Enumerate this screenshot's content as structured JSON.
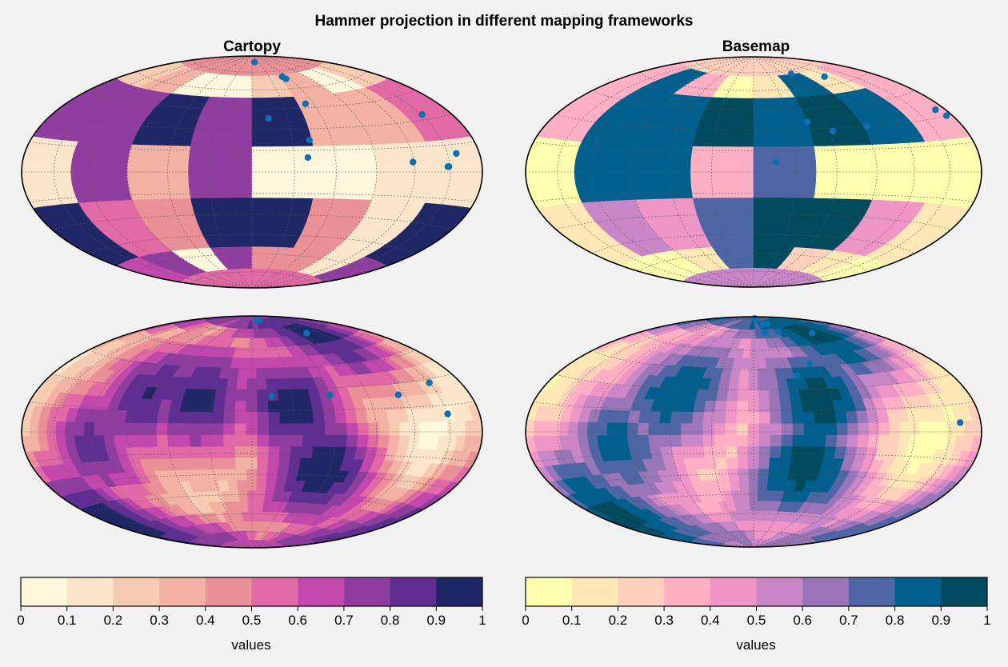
{
  "figure": {
    "title": "Hammer projection in different mapping frameworks",
    "background": "#f2f2f2"
  },
  "panel_titles": [
    "Cartopy",
    "Basemap"
  ],
  "colormaps": {
    "left": [
      "#fff8dc",
      "#fbe6cc",
      "#f6ccb2",
      "#f2b2a4",
      "#ea9097",
      "#e069a6",
      "#c248ad",
      "#8f3d9e",
      "#5e2e91",
      "#202766"
    ],
    "right": [
      "#ffffb0",
      "#ffe8b6",
      "#ffd1bd",
      "#ffb0c5",
      "#f096c6",
      "#c987c8",
      "#9a76b9",
      "#4f66a6",
      "#005f8c",
      "#004a5e"
    ],
    "point_color": "#0b6fb0",
    "grid_color": "#555555"
  },
  "colorbars": [
    {
      "label": "values",
      "ticks": [
        "0",
        "0.1",
        "0.2",
        "0.3",
        "0.4",
        "0.5",
        "0.6",
        "0.7",
        "0.8",
        "0.9",
        "1"
      ]
    },
    {
      "label": "values",
      "ticks": [
        "0",
        "0.1",
        "0.2",
        "0.3",
        "0.4",
        "0.5",
        "0.6",
        "0.7",
        "0.8",
        "0.9",
        "1"
      ]
    }
  ],
  "chart_data": [
    {
      "type": "heatmap",
      "title": "Cartopy",
      "projection": "hammer",
      "lon_edges": [
        -180,
        -135,
        -90,
        -45,
        0,
        45,
        90,
        135,
        180
      ],
      "lat_edges": [
        -90,
        -72,
        -54,
        -18,
        18,
        54,
        72,
        90
      ],
      "values": [
        [
          0.55,
          0.55,
          0.55,
          0.55,
          0.55,
          0.55,
          0.55,
          0.55
        ],
        [
          0.65,
          0.75,
          0.05,
          0.75,
          0.45,
          0.45,
          0.15,
          0.75
        ],
        [
          0.95,
          0.55,
          0.45,
          0.95,
          0.95,
          0.45,
          0.15,
          0.95
        ],
        [
          0.15,
          0.75,
          0.35,
          0.75,
          0.05,
          0.05,
          0.15,
          0.15
        ],
        [
          0.75,
          0.75,
          0.95,
          0.75,
          0.95,
          0.35,
          0.35,
          0.55
        ],
        [
          0.25,
          0.35,
          0.05,
          0.05,
          0.25,
          0.35,
          0.05,
          0.25
        ],
        [
          0.45,
          0.45,
          0.45,
          0.45,
          0.45,
          0.45,
          0.45,
          0.45
        ]
      ],
      "points": [
        {
          "lon": 13,
          "lat": 84
        },
        {
          "lon": 52,
          "lat": 70
        },
        {
          "lon": 54,
          "lat": 68
        },
        {
          "lon": 14,
          "lat": 38
        },
        {
          "lon": 52,
          "lat": 48
        },
        {
          "lon": 43,
          "lat": 22
        },
        {
          "lon": 40,
          "lat": 10
        },
        {
          "lon": 151,
          "lat": 33
        },
        {
          "lon": 119,
          "lat": 6
        },
        {
          "lon": 149,
          "lat": 3
        },
        {
          "lon": 148,
          "lat": 3
        },
        {
          "lon": 158,
          "lat": 10
        }
      ],
      "clim": [
        0,
        1
      ]
    },
    {
      "type": "heatmap",
      "title": "Basemap",
      "projection": "hammer",
      "lon_edges": [
        -180,
        -135,
        -90,
        -45,
        0,
        45,
        90,
        135,
        180
      ],
      "lat_edges": [
        -90,
        -72,
        -54,
        -18,
        18,
        54,
        72,
        90
      ],
      "values": [
        [
          0.55,
          0.55,
          0.55,
          0.55,
          0.55,
          0.55,
          0.55,
          0.55
        ],
        [
          0.05,
          0.05,
          0.15,
          0.75,
          0.95,
          0.25,
          0.15,
          0.05
        ],
        [
          0.15,
          0.55,
          0.45,
          0.75,
          0.95,
          0.95,
          0.45,
          0.15
        ],
        [
          0.05,
          0.85,
          0.85,
          0.35,
          0.75,
          0.05,
          0.05,
          0.05
        ],
        [
          0.35,
          0.85,
          0.85,
          0.95,
          0.85,
          0.95,
          0.85,
          0.35
        ],
        [
          0.35,
          0.85,
          0.35,
          0.05,
          0.15,
          0.85,
          0.15,
          0.35
        ],
        [
          0.25,
          0.25,
          0.25,
          0.25,
          0.25,
          0.25,
          0.25,
          0.25
        ]
      ],
      "points": [
        {
          "lon": 73,
          "lat": 72
        },
        {
          "lon": 115,
          "lat": 66
        },
        {
          "lon": 170,
          "lat": 34
        },
        {
          "lon": 174,
          "lat": 30
        },
        {
          "lon": 45,
          "lat": 35
        },
        {
          "lon": 63,
          "lat": 28
        },
        {
          "lon": 93,
          "lat": 30
        },
        {
          "lon": 16,
          "lat": 7
        }
      ],
      "clim": [
        0,
        1
      ]
    },
    {
      "type": "heatmap",
      "title": "",
      "projection": "hammer",
      "style": "contourf",
      "clim": [
        0,
        1
      ],
      "centers": [
        {
          "lon": -80,
          "lat": 25,
          "v": 0.9
        },
        {
          "lon": -40,
          "lat": 20,
          "v": 0.95
        },
        {
          "lon": 30,
          "lat": 20,
          "v": 0.95
        },
        {
          "lon": 55,
          "lat": -28,
          "v": 0.98
        },
        {
          "lon": -160,
          "lat": -55,
          "v": 0.95
        },
        {
          "lon": 100,
          "lat": 70,
          "v": 0.9
        },
        {
          "lon": -120,
          "lat": -10,
          "v": 0.8
        }
      ],
      "points": [
        {
          "lon": 30,
          "lat": 85
        },
        {
          "lon": 45,
          "lat": 85
        },
        {
          "lon": 100,
          "lat": 70
        },
        {
          "lon": 15,
          "lat": 25
        },
        {
          "lon": 60,
          "lat": 25
        },
        {
          "lon": 115,
          "lat": 23
        },
        {
          "lon": 150,
          "lat": 28
        },
        {
          "lon": 150,
          "lat": 10
        }
      ]
    },
    {
      "type": "heatmap",
      "title": "",
      "projection": "hammer",
      "style": "contourf",
      "clim": [
        0,
        1
      ],
      "centers": [
        {
          "lon": -60,
          "lat": 25,
          "v": 0.9
        },
        {
          "lon": 50,
          "lat": 25,
          "v": 0.95
        },
        {
          "lon": 40,
          "lat": -28,
          "v": 0.95
        },
        {
          "lon": -150,
          "lat": -50,
          "v": 0.95
        },
        {
          "lon": 100,
          "lat": 70,
          "v": 0.9
        },
        {
          "lon": -100,
          "lat": -10,
          "v": 0.82
        }
      ],
      "points": [
        {
          "lon": 10,
          "lat": 88
        },
        {
          "lon": 20,
          "lat": 88
        },
        {
          "lon": 35,
          "lat": 82
        },
        {
          "lon": 55,
          "lat": 82
        },
        {
          "lon": 25,
          "lat": 75
        },
        {
          "lon": 55,
          "lat": 75
        },
        {
          "lon": 110,
          "lat": 70
        },
        {
          "lon": 55,
          "lat": 48
        },
        {
          "lon": 38,
          "lat": 40
        },
        {
          "lon": 160,
          "lat": 5
        }
      ]
    }
  ]
}
